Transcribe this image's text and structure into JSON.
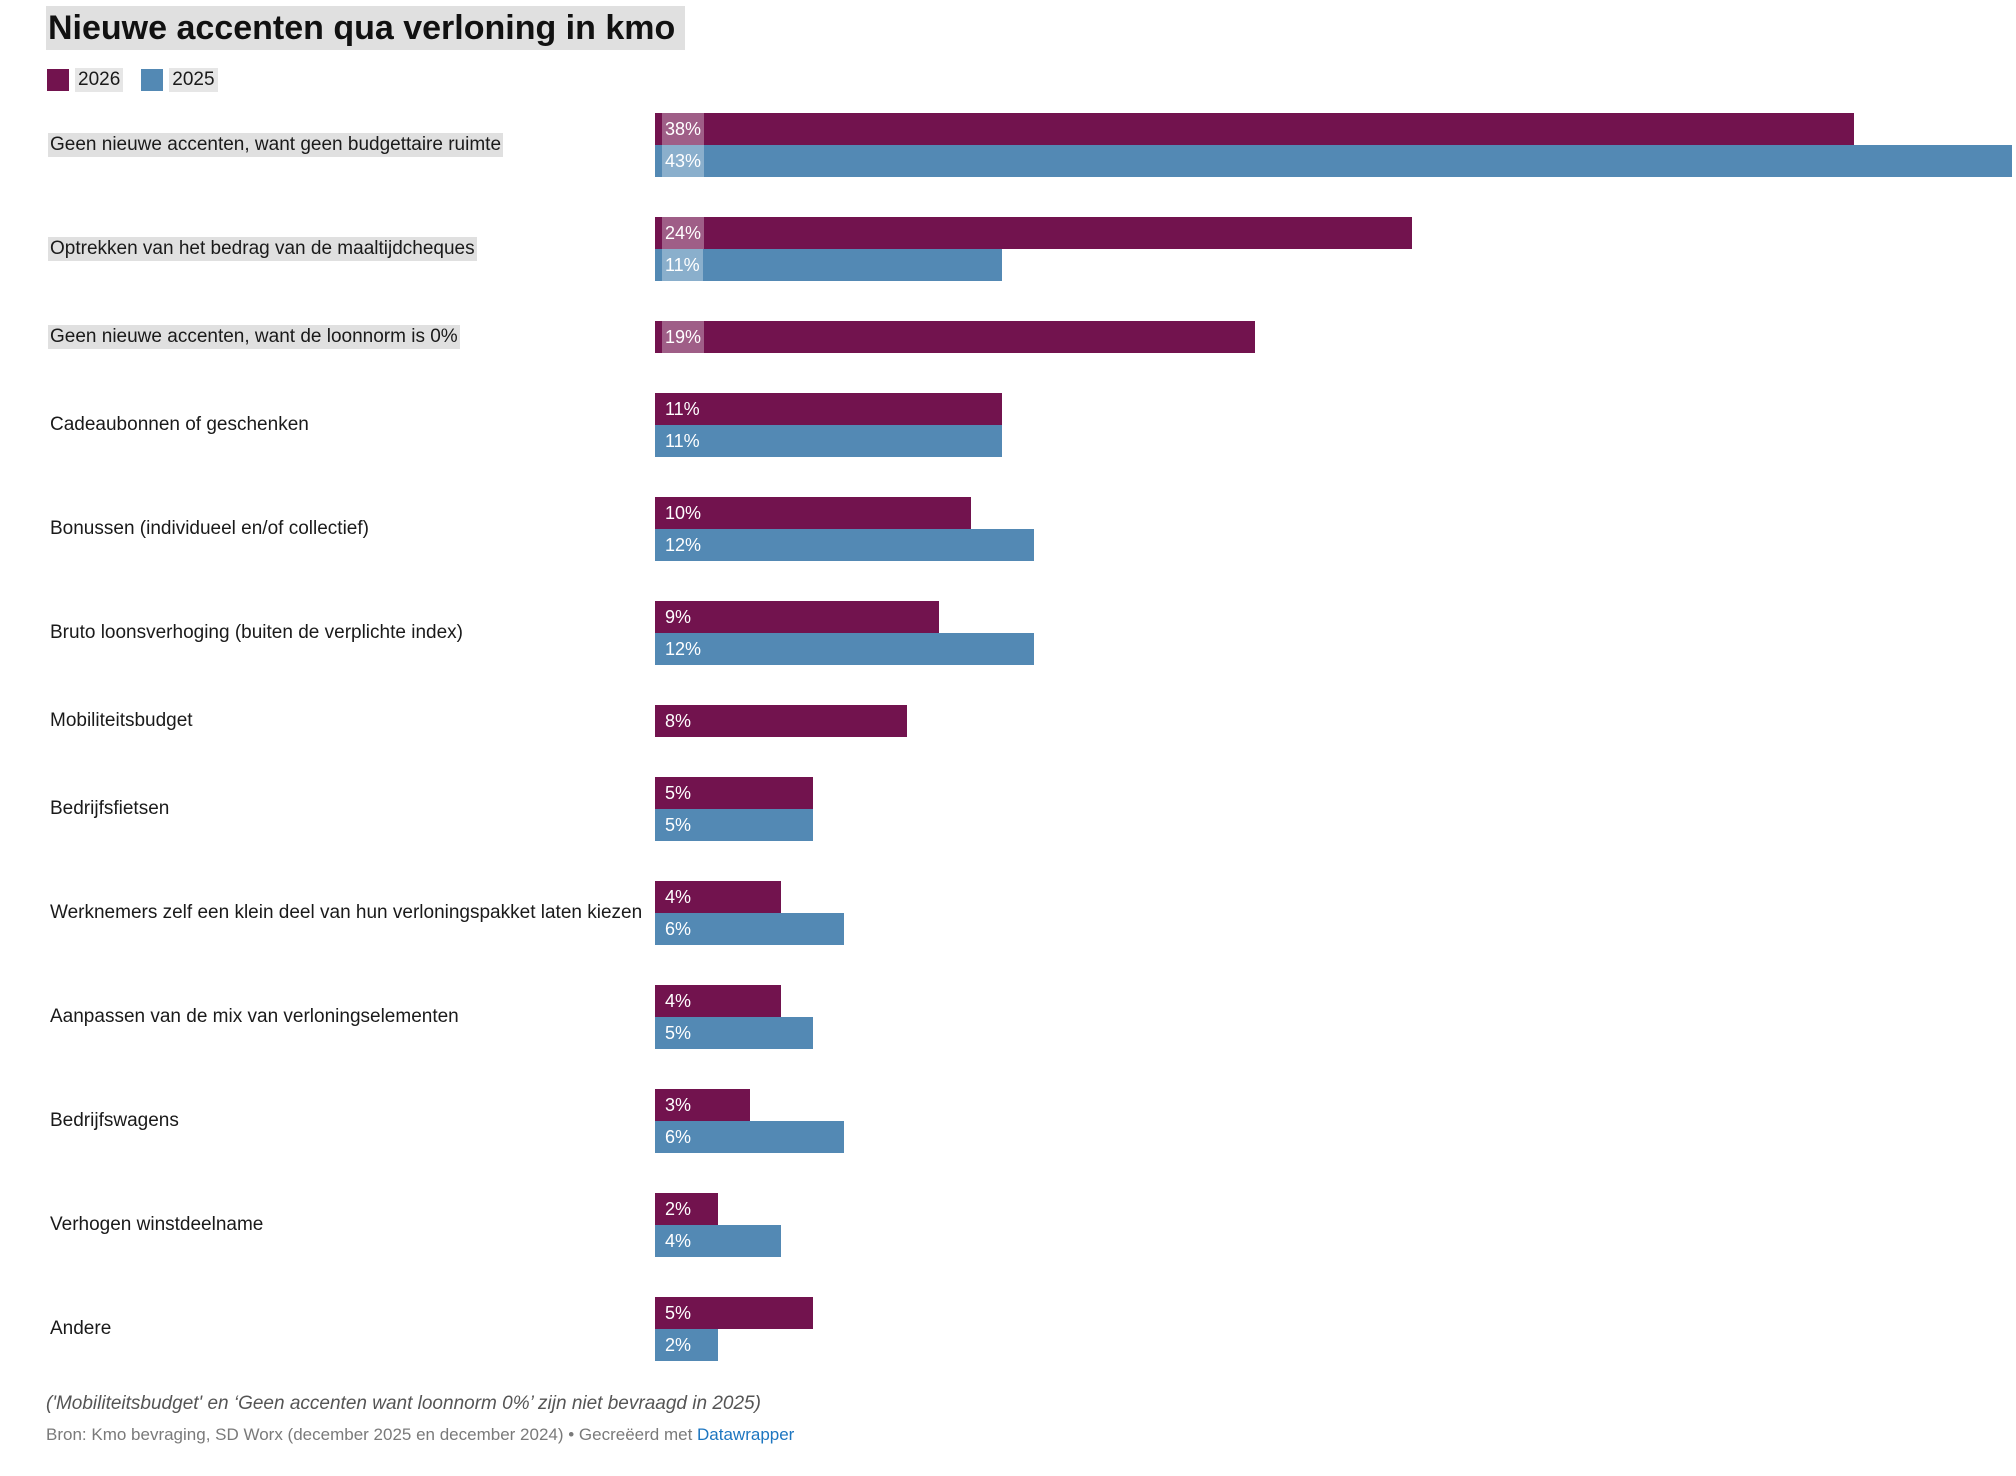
{
  "colors": {
    "series2026": "#72134e",
    "series2025": "#5389b4"
  },
  "chart_data": {
    "type": "bar",
    "orientation": "horizontal",
    "title": "Nieuwe accenten qua verloning in kmo",
    "categories": [
      "Geen nieuwe accenten, want geen budgettaire ruimte",
      "Optrekken van het bedrag van de maaltijdcheques",
      "Geen nieuwe accenten, want de loonnorm is 0%",
      "Cadeaubonnen of geschenken",
      "Bonussen (individueel en/of collectief)",
      "Bruto loonsverhoging (buiten de verplichte index)",
      "Mobiliteitsbudget",
      "Bedrijfsfietsen",
      "Werknemers zelf een klein deel van hun verloningspakket laten kiezen",
      "Aanpassen van de mix van verloningselementen",
      "Bedrijfswagens",
      "Verhogen winstdeelname",
      "Andere"
    ],
    "series": [
      {
        "name": "2026",
        "values": [
          38,
          24,
          19,
          11,
          10,
          9,
          8,
          5,
          4,
          4,
          3,
          2,
          5
        ]
      },
      {
        "name": "2025",
        "values": [
          43,
          11,
          null,
          11,
          12,
          12,
          null,
          5,
          6,
          5,
          6,
          4,
          2
        ]
      }
    ],
    "value_suffix": "%",
    "xlim": [
      0,
      43
    ],
    "legend": "top-left",
    "highlighted_categories": [
      0,
      1,
      2
    ],
    "note": "('Mobiliteitsbudget' en ‘Geen accenten want loonnorm 0%’ zijn niet bevraagd in 2025)",
    "source_text": "Bron: Kmo bevraging, SD Worx (december 2025 en december 2024) • Gecreëerd met ",
    "source_link": "Datawrapper"
  }
}
